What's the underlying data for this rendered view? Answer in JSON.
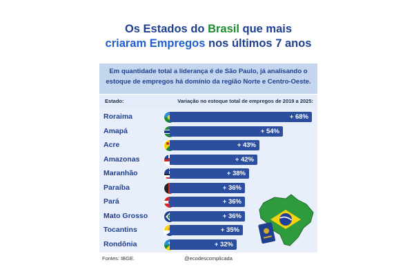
{
  "header": {
    "title_part1": "Os Estados do ",
    "title_highlight": "Brasil",
    "title_part2": " que mais",
    "title_line2_highlight": "criaram Empregos",
    "title_line2_rest": " nos últimos 7 anos",
    "subtitle": "Em quantidade total a liderança é de São Paulo, já analisando o estoque de empregos há domínio da região Norte e Centro-Oeste."
  },
  "table_header": {
    "left": "Estado:",
    "right": "Variação no estoque total de empregos de 2019 a 2025:"
  },
  "footer": {
    "source": "Fontes: IBGE.",
    "handle": "@ecodescomplicada"
  },
  "colors": {
    "title_blue": "#1f3f8f",
    "title_green": "#1f8a2e",
    "accent_blue": "#1f5fd0",
    "bar": "#2c4e9e",
    "subtitle_bg": "#c4d6ee",
    "rows_bg": "#e8effa"
  },
  "chart_data": {
    "type": "bar",
    "orientation": "horizontal",
    "title": "Os Estados do Brasil que mais criaram Empregos nos últimos 7 anos",
    "xlabel": "Variação no estoque total de empregos de 2019 a 2025:",
    "ylabel": "Estado:",
    "categories": [
      "Roraima",
      "Amapá",
      "Acre",
      "Amazonas",
      "Maranhão",
      "Paraíba",
      "Pará",
      "Mato Grosso",
      "Tocantins",
      "Rondônia"
    ],
    "values": [
      68,
      54,
      43,
      42,
      38,
      36,
      36,
      36,
      35,
      32
    ],
    "value_labels": [
      "+ 68%",
      "+ 54%",
      "+ 43%",
      "+ 42%",
      "+ 38%",
      "+ 36%",
      "+ 36%",
      "+ 36%",
      "+ 35%",
      "+ 32%"
    ],
    "unit": "%",
    "flag_icons": [
      "roraima-flag-icon",
      "amapa-flag-icon",
      "acre-flag-icon",
      "amazonas-flag-icon",
      "maranhao-flag-icon",
      "paraiba-flag-icon",
      "para-flag-icon",
      "mato-grosso-flag-icon",
      "tocantins-flag-icon",
      "rondonia-flag-icon"
    ]
  }
}
